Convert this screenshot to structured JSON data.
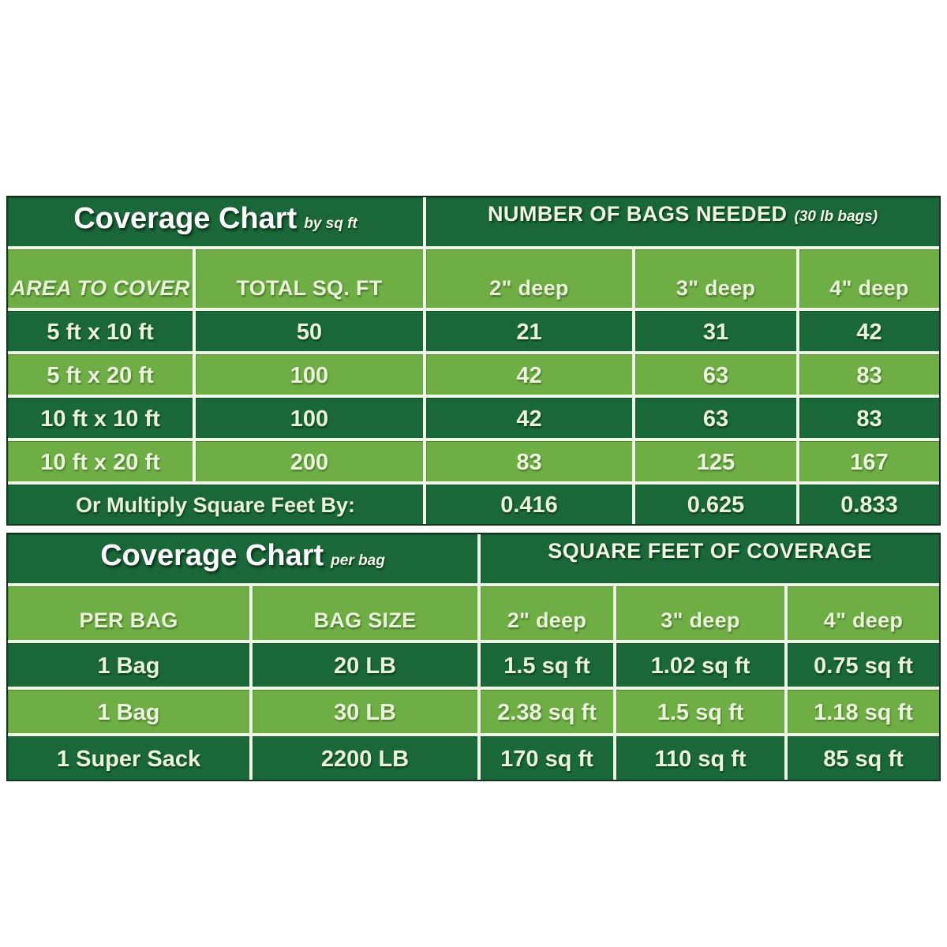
{
  "page": {
    "background": "#ffffff"
  },
  "colors": {
    "dark_green_cell": "#1a6839",
    "medium_green_cell": "#6fae45",
    "pale_text": "#e7f5d6",
    "title_text": "#ffffff",
    "separator_line": "#eef7e6",
    "outer_border": "#11361d"
  },
  "table1": {
    "title_left": "Coverage Chart",
    "title_left_sub": "by sq ft",
    "title_right": "NUMBER OF BAGS NEEDED",
    "title_right_sub": "(30 lb bags)",
    "columns": [
      "AREA TO COVER",
      "TOTAL SQ. FT",
      "2\" deep",
      "3\" deep",
      "4\" deep"
    ],
    "rows": [
      {
        "area": "5 ft x 10 ft",
        "sqft": "50",
        "d2": "21",
        "d3": "31",
        "d4": "42"
      },
      {
        "area": "5 ft x 20 ft",
        "sqft": "100",
        "d2": "42",
        "d3": "63",
        "d4": "83"
      },
      {
        "area": "10 ft x 10 ft",
        "sqft": "100",
        "d2": "42",
        "d3": "63",
        "d4": "83"
      },
      {
        "area": "10 ft x 20 ft",
        "sqft": "200",
        "d2": "83",
        "d3": "125",
        "d4": "167"
      }
    ],
    "footer": {
      "label": "Or Multiply Square Feet By:",
      "values": [
        "0.416",
        "0.625",
        "0.833"
      ]
    }
  },
  "table2": {
    "title_left": "Coverage Chart",
    "title_left_sub": "per bag",
    "title_right": "SQUARE FEET OF COVERAGE",
    "columns": [
      "PER BAG",
      "BAG SIZE",
      "2\" deep",
      "3\" deep",
      "4\" deep"
    ],
    "rows": [
      {
        "per_bag": "1 Bag",
        "bag_size": "20 LB",
        "d2": "1.5 sq ft",
        "d3": "1.02 sq ft",
        "d4": "0.75 sq ft"
      },
      {
        "per_bag": "1 Bag",
        "bag_size": "30 LB",
        "d2": "2.38 sq ft",
        "d3": "1.5 sq ft",
        "d4": "1.18 sq ft"
      },
      {
        "per_bag": "1 Super Sack",
        "bag_size": "2200 LB",
        "d2": "170 sq ft",
        "d3": "110 sq ft",
        "d4": "85 sq ft"
      }
    ]
  },
  "chart_data": [
    {
      "type": "table",
      "title": "Coverage Chart by sq ft — NUMBER OF BAGS NEEDED (30 lb bags)",
      "columns": [
        "AREA TO COVER",
        "TOTAL SQ. FT",
        "2\" deep",
        "3\" deep",
        "4\" deep"
      ],
      "rows": [
        [
          "5 ft x 10 ft",
          50,
          21,
          31,
          42
        ],
        [
          "5 ft x 20 ft",
          100,
          42,
          63,
          83
        ],
        [
          "10 ft x 10 ft",
          100,
          42,
          63,
          83
        ],
        [
          "10 ft x 20 ft",
          200,
          83,
          125,
          167
        ],
        [
          "Or Multiply Square Feet By:",
          null,
          0.416,
          0.625,
          0.833
        ]
      ]
    },
    {
      "type": "table",
      "title": "Coverage Chart per bag — SQUARE FEET OF COVERAGE",
      "columns": [
        "PER BAG",
        "BAG SIZE",
        "2\" deep",
        "3\" deep",
        "4\" deep"
      ],
      "rows": [
        [
          "1 Bag",
          "20 LB",
          "1.5 sq ft",
          "1.02 sq ft",
          "0.75 sq ft"
        ],
        [
          "1 Bag",
          "30 LB",
          "2.38 sq ft",
          "1.5 sq ft",
          "1.18 sq ft"
        ],
        [
          "1 Super Sack",
          "2200 LB",
          "170 sq ft",
          "110 sq ft",
          "85 sq ft"
        ]
      ]
    }
  ]
}
